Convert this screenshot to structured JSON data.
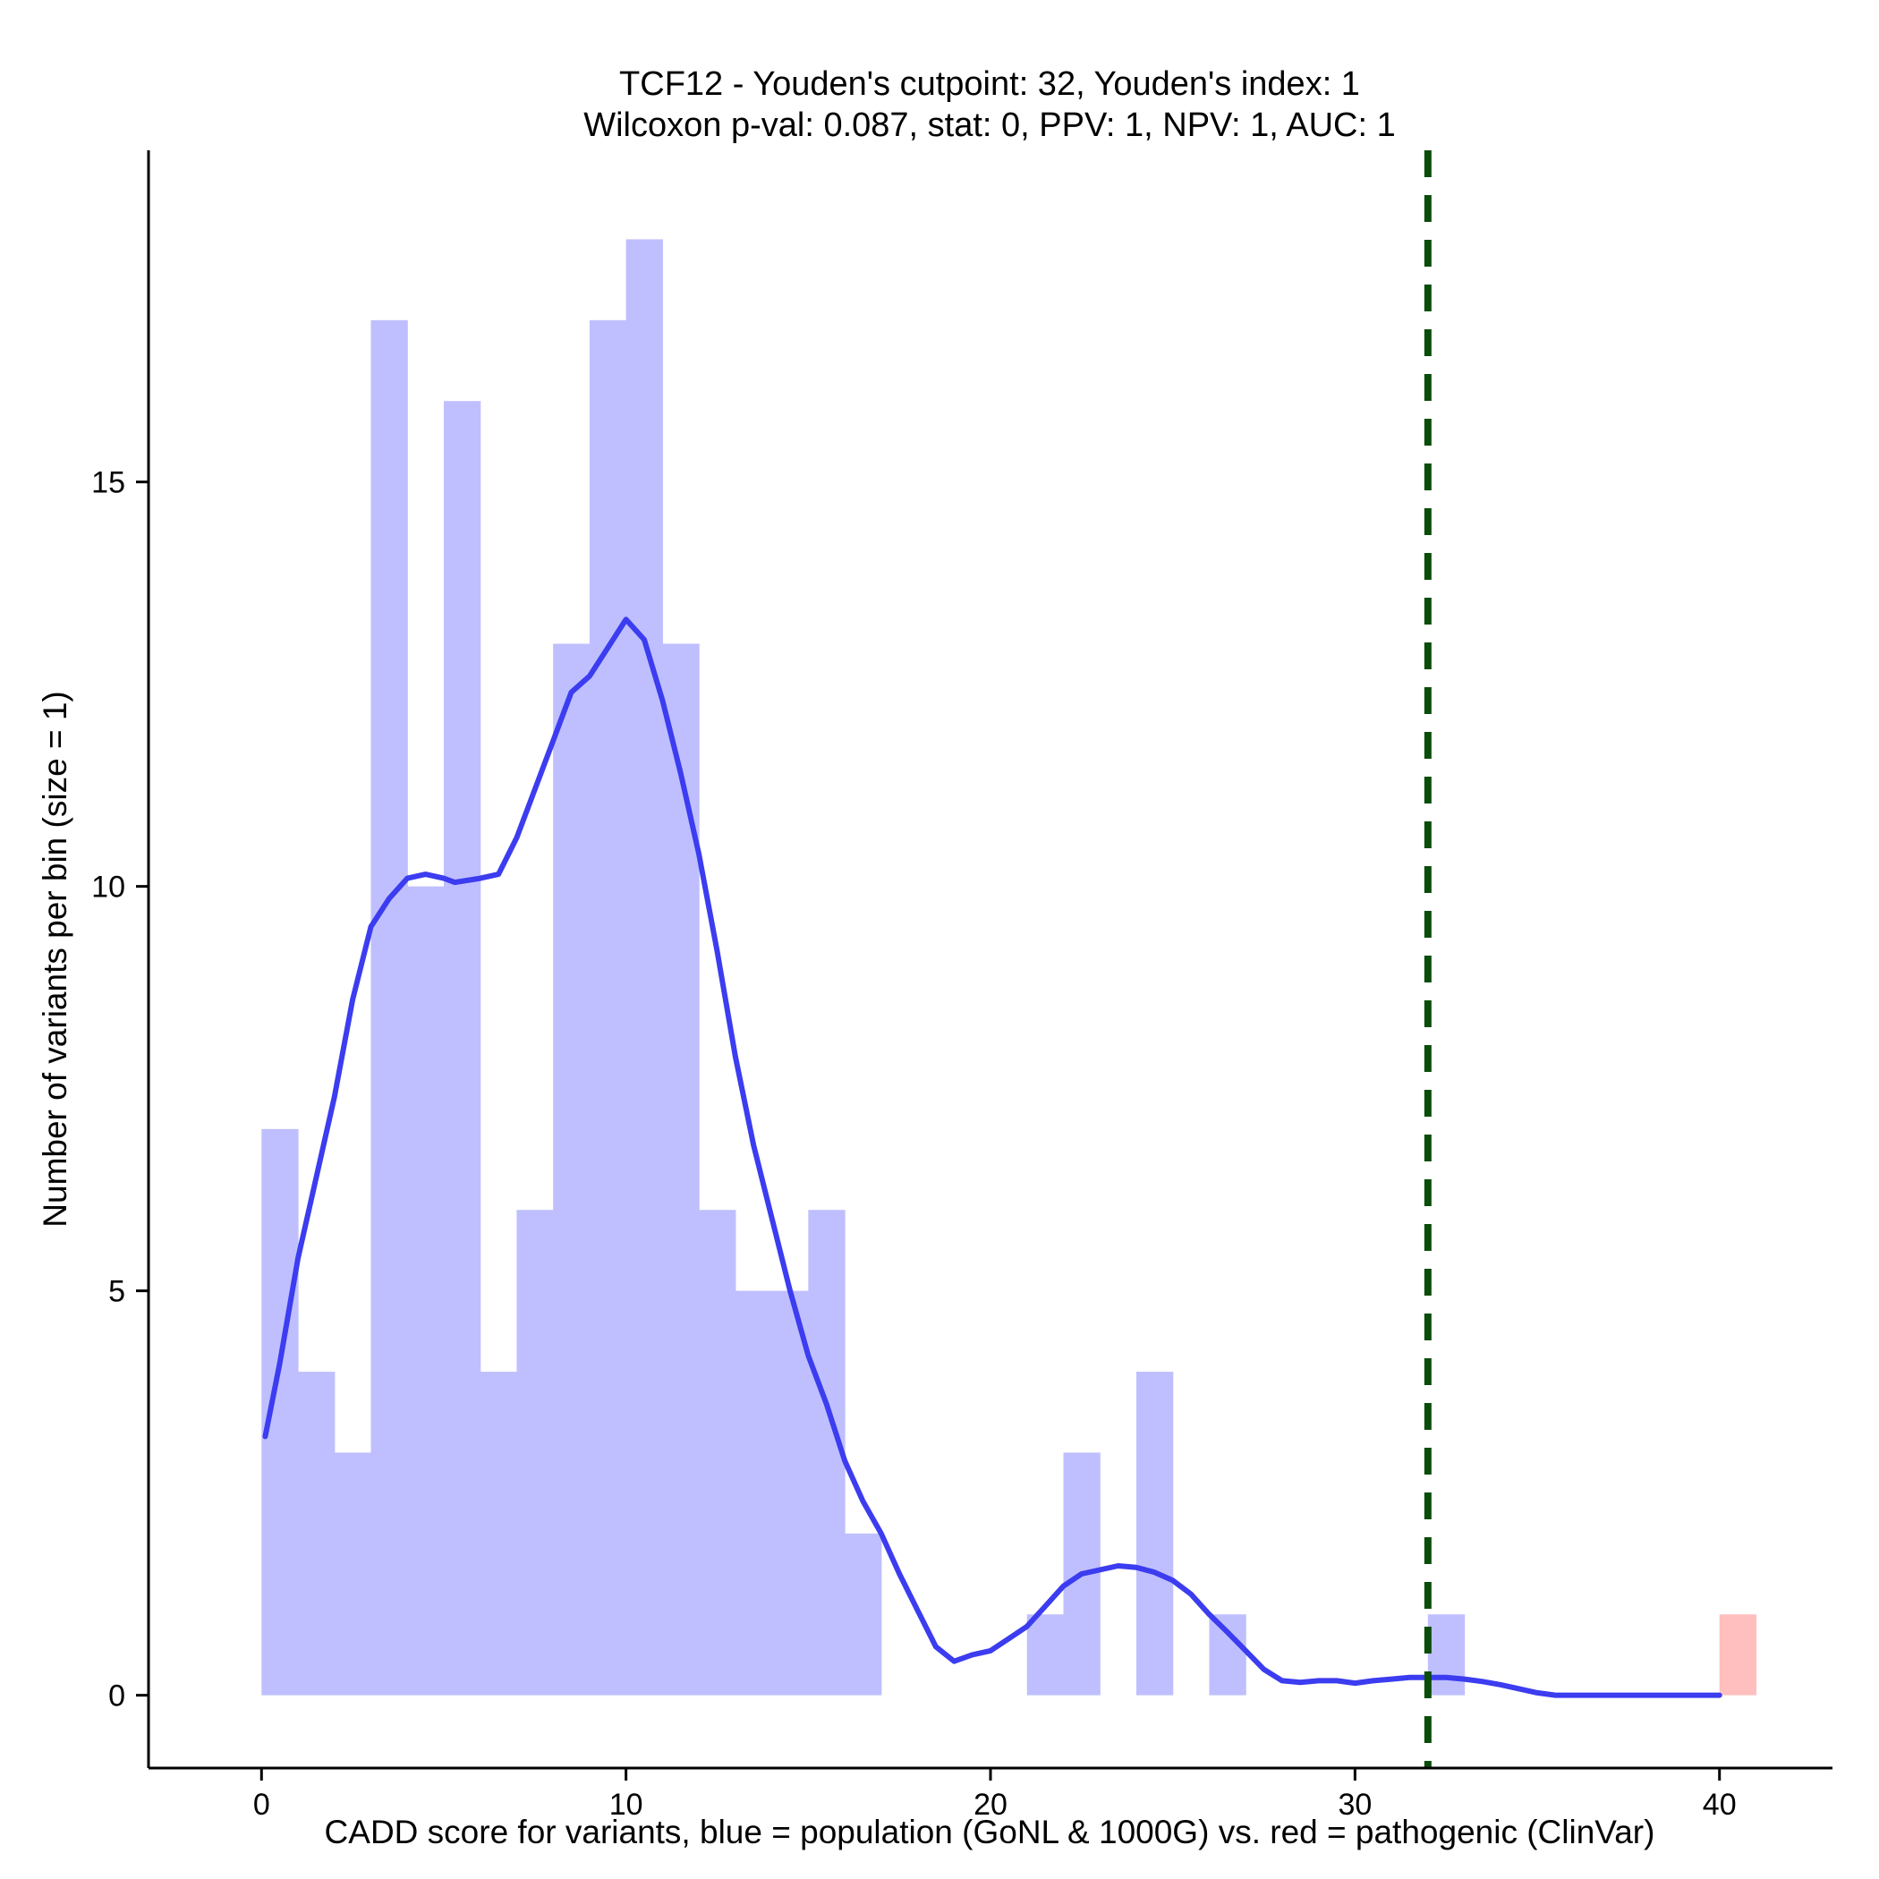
{
  "chart_data": {
    "type": "bar",
    "title": "TCF12 - Youden's cutpoint: 32, Youden's index: 1",
    "subtitle": "Wilcoxon p-val: 0.087, stat: 0, PPV: 1, NPV: 1, AUC: 1",
    "xlabel": "CADD score for variants, blue = population (GoNL & 1000G) vs. red = pathogenic (ClinVar)",
    "ylabel": "Number of variants per bin (size = 1)",
    "xlim": [
      -3.1,
      43.1
    ],
    "ylim": [
      -0.9,
      19.1
    ],
    "x_ticks": [
      0,
      10,
      20,
      30,
      40
    ],
    "y_ticks": [
      0,
      5,
      10,
      15
    ],
    "grid": false,
    "legend": "none",
    "bin_size": 1,
    "series": [
      {
        "name": "population",
        "color": "#bfbfff",
        "bins": [
          {
            "start": 0,
            "count": 7
          },
          {
            "start": 1,
            "count": 4
          },
          {
            "start": 2,
            "count": 3
          },
          {
            "start": 3,
            "count": 17
          },
          {
            "start": 4,
            "count": 10
          },
          {
            "start": 5,
            "count": 16
          },
          {
            "start": 6,
            "count": 4
          },
          {
            "start": 7,
            "count": 6
          },
          {
            "start": 8,
            "count": 13
          },
          {
            "start": 9,
            "count": 17
          },
          {
            "start": 10,
            "count": 18
          },
          {
            "start": 11,
            "count": 13
          },
          {
            "start": 12,
            "count": 6
          },
          {
            "start": 13,
            "count": 5
          },
          {
            "start": 14,
            "count": 5
          },
          {
            "start": 15,
            "count": 6
          },
          {
            "start": 16,
            "count": 2
          },
          {
            "start": 21,
            "count": 1
          },
          {
            "start": 22,
            "count": 3
          },
          {
            "start": 24,
            "count": 4
          },
          {
            "start": 26,
            "count": 1
          },
          {
            "start": 32,
            "count": 1
          }
        ]
      },
      {
        "name": "pathogenic",
        "color": "#ffbfbf",
        "bins": [
          {
            "start": 40,
            "count": 1
          }
        ]
      }
    ],
    "density_line": {
      "color": "#3c3cf0",
      "points": [
        [
          0.1,
          3.2
        ],
        [
          0.5,
          4.1
        ],
        [
          1.0,
          5.4
        ],
        [
          1.5,
          6.4
        ],
        [
          2.0,
          7.4
        ],
        [
          2.5,
          8.6
        ],
        [
          3.0,
          9.5
        ],
        [
          3.5,
          9.85
        ],
        [
          4.0,
          10.1
        ],
        [
          4.5,
          10.15
        ],
        [
          5.0,
          10.1
        ],
        [
          5.3,
          10.05
        ],
        [
          6.0,
          10.1
        ],
        [
          6.5,
          10.15
        ],
        [
          7.0,
          10.6
        ],
        [
          7.5,
          11.2
        ],
        [
          8.0,
          11.8
        ],
        [
          8.5,
          12.4
        ],
        [
          9.0,
          12.6
        ],
        [
          9.5,
          12.95
        ],
        [
          10.0,
          13.3
        ],
        [
          10.5,
          13.05
        ],
        [
          11.0,
          12.3
        ],
        [
          11.5,
          11.4
        ],
        [
          12.0,
          10.4
        ],
        [
          12.5,
          9.2
        ],
        [
          13.0,
          7.9
        ],
        [
          13.5,
          6.8
        ],
        [
          14.0,
          5.9
        ],
        [
          14.5,
          5.0
        ],
        [
          15.0,
          4.2
        ],
        [
          15.5,
          3.6
        ],
        [
          16.0,
          2.9
        ],
        [
          16.5,
          2.4
        ],
        [
          17.0,
          2.0
        ],
        [
          17.5,
          1.5
        ],
        [
          18.0,
          1.05
        ],
        [
          18.5,
          0.6
        ],
        [
          19.0,
          0.42
        ],
        [
          19.5,
          0.5
        ],
        [
          20.0,
          0.55
        ],
        [
          20.5,
          0.7
        ],
        [
          21.0,
          0.85
        ],
        [
          21.5,
          1.1
        ],
        [
          22.0,
          1.35
        ],
        [
          22.5,
          1.5
        ],
        [
          23.0,
          1.55
        ],
        [
          23.5,
          1.6
        ],
        [
          24.0,
          1.58
        ],
        [
          24.5,
          1.52
        ],
        [
          25.0,
          1.42
        ],
        [
          25.5,
          1.25
        ],
        [
          26.0,
          1.0
        ],
        [
          26.5,
          0.78
        ],
        [
          27.0,
          0.55
        ],
        [
          27.5,
          0.32
        ],
        [
          28.0,
          0.18
        ],
        [
          28.5,
          0.16
        ],
        [
          29.0,
          0.18
        ],
        [
          29.5,
          0.18
        ],
        [
          30.0,
          0.15
        ],
        [
          30.5,
          0.18
        ],
        [
          31.0,
          0.2
        ],
        [
          31.5,
          0.22
        ],
        [
          32.0,
          0.22
        ],
        [
          32.5,
          0.22
        ],
        [
          33.0,
          0.2
        ],
        [
          33.5,
          0.17
        ],
        [
          34.0,
          0.13
        ],
        [
          34.5,
          0.08
        ],
        [
          35.0,
          0.03
        ],
        [
          35.5,
          0.0
        ],
        [
          36.0,
          0.0
        ],
        [
          37.0,
          0.0
        ],
        [
          38.0,
          0.0
        ],
        [
          39.0,
          0.0
        ],
        [
          40.0,
          0.0
        ]
      ]
    },
    "cutpoint": {
      "x": 32,
      "color": "#0a4d0a",
      "style": "dashed"
    }
  }
}
